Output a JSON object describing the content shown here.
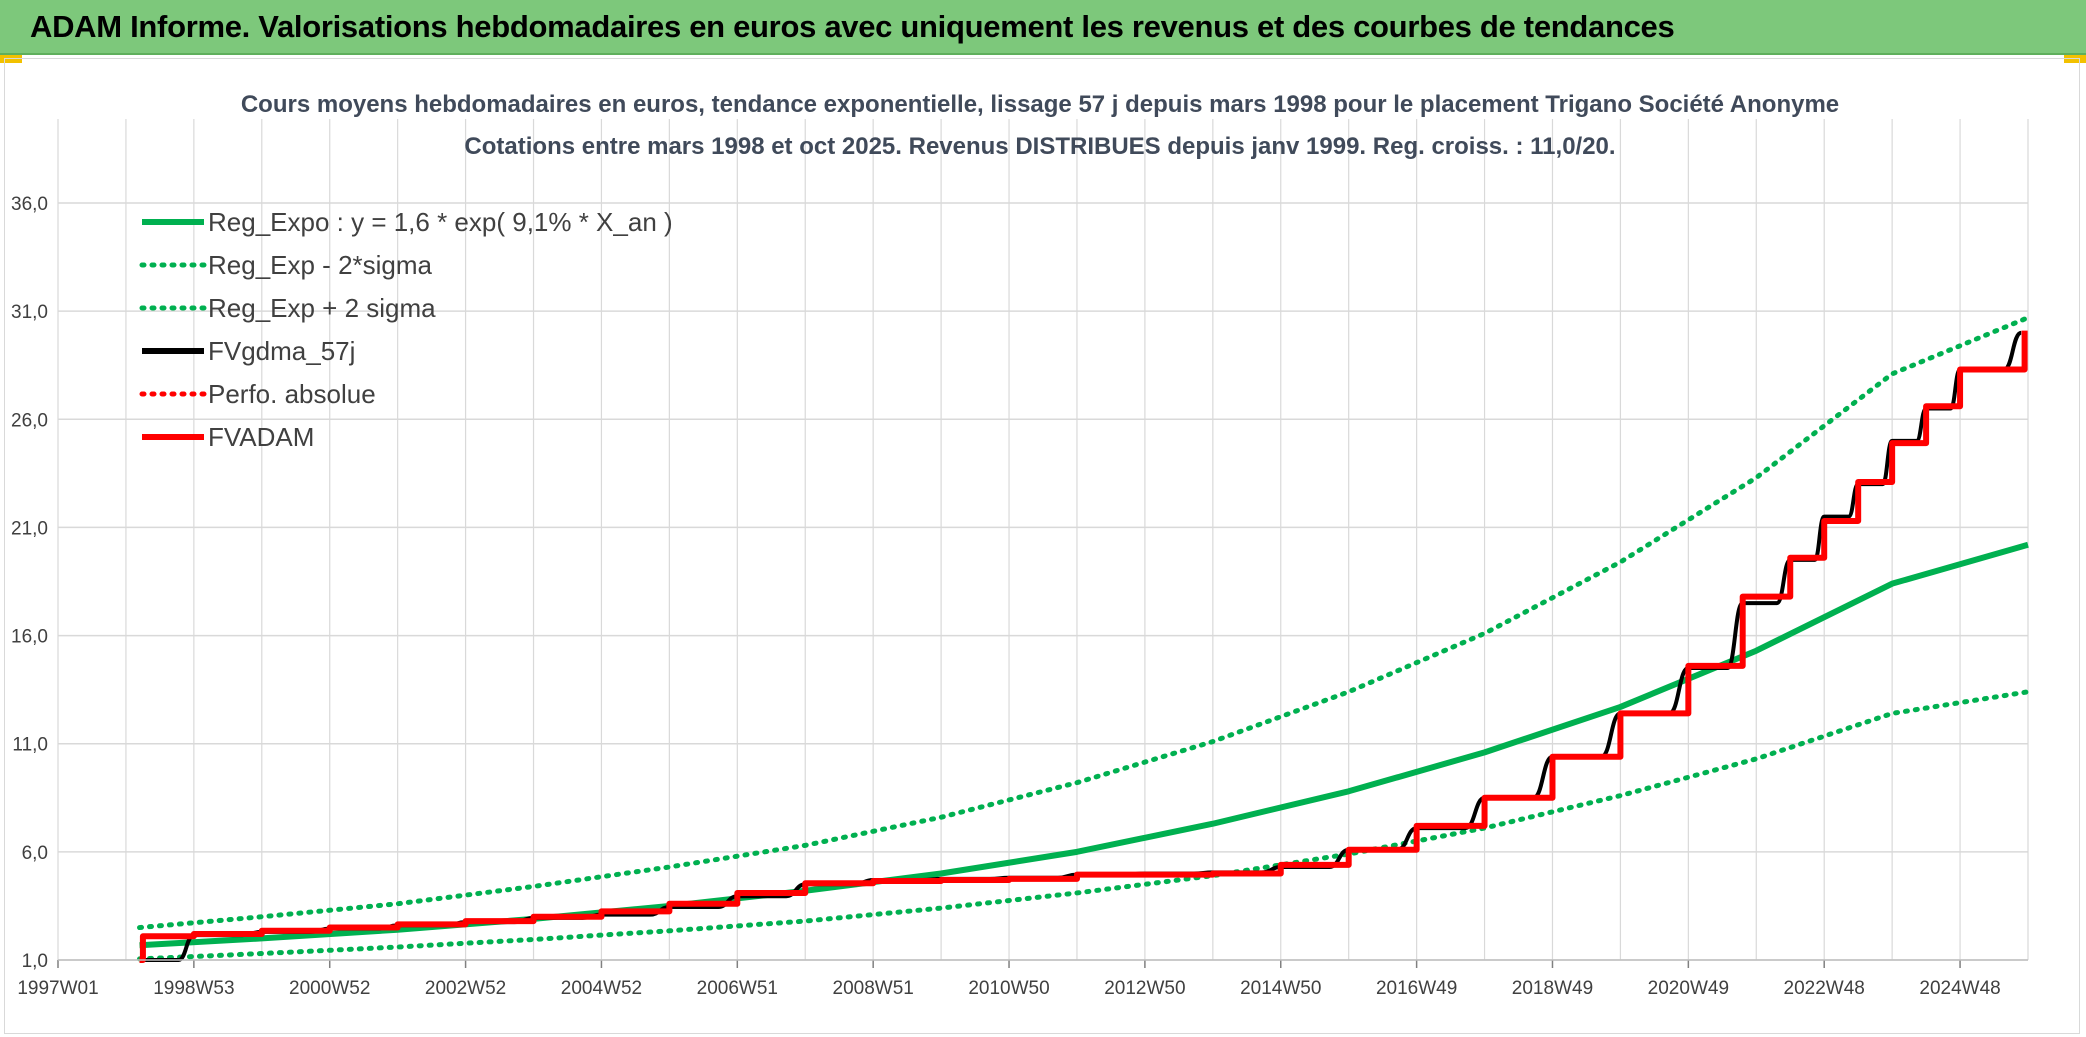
{
  "header": {
    "title": "ADAM Informe. Valorisations hebdomadaires en euros avec uniquement les revenus et des courbes de tendances"
  },
  "colors": {
    "header_bg": "#7dc87b",
    "green": "#00b050",
    "black": "#000000",
    "red": "#ff0000",
    "grid": "#d9d9d9",
    "corner": "#f2c100"
  },
  "chart_data": {
    "type": "line",
    "title": "Cours moyens hebdomadaires en euros, tendance exponentielle, lissage 57 j depuis mars 1998 pour le placement Trigano Société Anonyme",
    "subtitle": "Cotations entre mars 1998 et oct 2025. Revenus DISTRIBUES depuis janv 1999. Reg. croiss. : 11,0/20.",
    "xlabel": "",
    "ylabel": "",
    "x_ticks": [
      "1997W01",
      "1998W53",
      "2000W52",
      "2002W52",
      "2004W52",
      "2006W51",
      "2008W51",
      "2010W50",
      "2012W50",
      "2014W50",
      "2016W49",
      "2018W49",
      "2020W49",
      "2022W48",
      "2024W48"
    ],
    "x_range_years": [
      1997.0,
      2026.0
    ],
    "y_ticks": [
      "1,0",
      "6,0",
      "11,0",
      "16,0",
      "21,0",
      "26,0",
      "31,0",
      "36,0"
    ],
    "ylim": [
      1,
      36
    ],
    "grid": true,
    "legend_position": "top-left",
    "series": [
      {
        "name": "Reg_Expo : y = 1,6 * exp( 9,1% *  X_an )",
        "style": "solid",
        "color": "#00b050",
        "x": [
          1998.2,
          2000,
          2002,
          2004,
          2006,
          2008,
          2010,
          2012,
          2014,
          2016,
          2018,
          2020,
          2022,
          2024,
          2026
        ],
        "values": [
          1.68,
          2.0,
          2.4,
          2.9,
          3.5,
          4.2,
          5.0,
          6.0,
          7.3,
          8.8,
          10.6,
          12.7,
          15.3,
          18.4,
          20.2
        ]
      },
      {
        "name": "Reg_Exp - 2*sigma",
        "style": "dotted",
        "color": "#00b050",
        "x": [
          1998.2,
          2000,
          2002,
          2004,
          2006,
          2008,
          2010,
          2012,
          2014,
          2016,
          2018,
          2020,
          2022,
          2024,
          2026
        ],
        "values": [
          1.05,
          1.3,
          1.6,
          1.95,
          2.35,
          2.8,
          3.4,
          4.1,
          4.9,
          5.9,
          7.1,
          8.6,
          10.3,
          12.4,
          13.4
        ]
      },
      {
        "name": "Reg_Exp + 2 sigma",
        "style": "dotted",
        "color": "#00b050",
        "x": [
          1998.2,
          2000,
          2002,
          2004,
          2006,
          2008,
          2010,
          2012,
          2014,
          2016,
          2018,
          2020,
          2022,
          2024,
          2026
        ],
        "values": [
          2.5,
          3.0,
          3.6,
          4.4,
          5.3,
          6.3,
          7.6,
          9.2,
          11.1,
          13.4,
          16.1,
          19.4,
          23.3,
          28.1,
          30.7
        ]
      },
      {
        "name": "FVgdma_57j",
        "style": "solid",
        "color": "#000000",
        "x": [
          1998.2,
          1999.0,
          2000.0,
          2001.0,
          2002.0,
          2003.0,
          2004.0,
          2005.0,
          2006.0,
          2007.0,
          2008.0,
          2009.0,
          2010.0,
          2011.0,
          2012.0,
          2013.0,
          2014.0,
          2015.0,
          2016.0,
          2017.0,
          2018.0,
          2019.0,
          2020.0,
          2021.0,
          2021.8,
          2022.5,
          2023.0,
          2023.5,
          2024.0,
          2024.5,
          2025.0,
          2025.9
        ],
        "values": [
          1.0,
          2.15,
          2.3,
          2.45,
          2.6,
          2.75,
          2.95,
          3.1,
          3.45,
          3.95,
          4.5,
          4.7,
          4.75,
          4.8,
          4.95,
          5.0,
          5.05,
          5.3,
          6.1,
          7.1,
          8.5,
          10.4,
          12.4,
          14.5,
          17.5,
          19.5,
          21.5,
          23.0,
          25.0,
          26.5,
          28.3,
          30.0
        ]
      },
      {
        "name": "Perfo. absolue",
        "style": "dotted",
        "color": "#ff0000",
        "x": [],
        "values": []
      },
      {
        "name": "FVADAM",
        "style": "step",
        "color": "#ff0000",
        "x": [
          1998.2,
          1998.25,
          1999.0,
          2000.0,
          2001.0,
          2002.0,
          2003.0,
          2004.0,
          2005.0,
          2006.0,
          2007.0,
          2008.0,
          2009.0,
          2010.0,
          2011.0,
          2012.0,
          2013.0,
          2014.0,
          2015.0,
          2016.0,
          2017.0,
          2018.0,
          2019.0,
          2020.0,
          2021.0,
          2021.8,
          2022.5,
          2023.0,
          2023.5,
          2024.0,
          2024.5,
          2025.0,
          2025.95
        ],
        "values": [
          1.0,
          2.1,
          2.2,
          2.35,
          2.5,
          2.65,
          2.8,
          3.0,
          3.25,
          3.6,
          4.1,
          4.55,
          4.65,
          4.7,
          4.75,
          4.95,
          4.95,
          5.0,
          5.4,
          6.1,
          7.2,
          8.5,
          10.4,
          12.4,
          14.6,
          17.8,
          19.6,
          21.3,
          23.1,
          24.9,
          26.6,
          28.3,
          30.1
        ]
      }
    ]
  }
}
